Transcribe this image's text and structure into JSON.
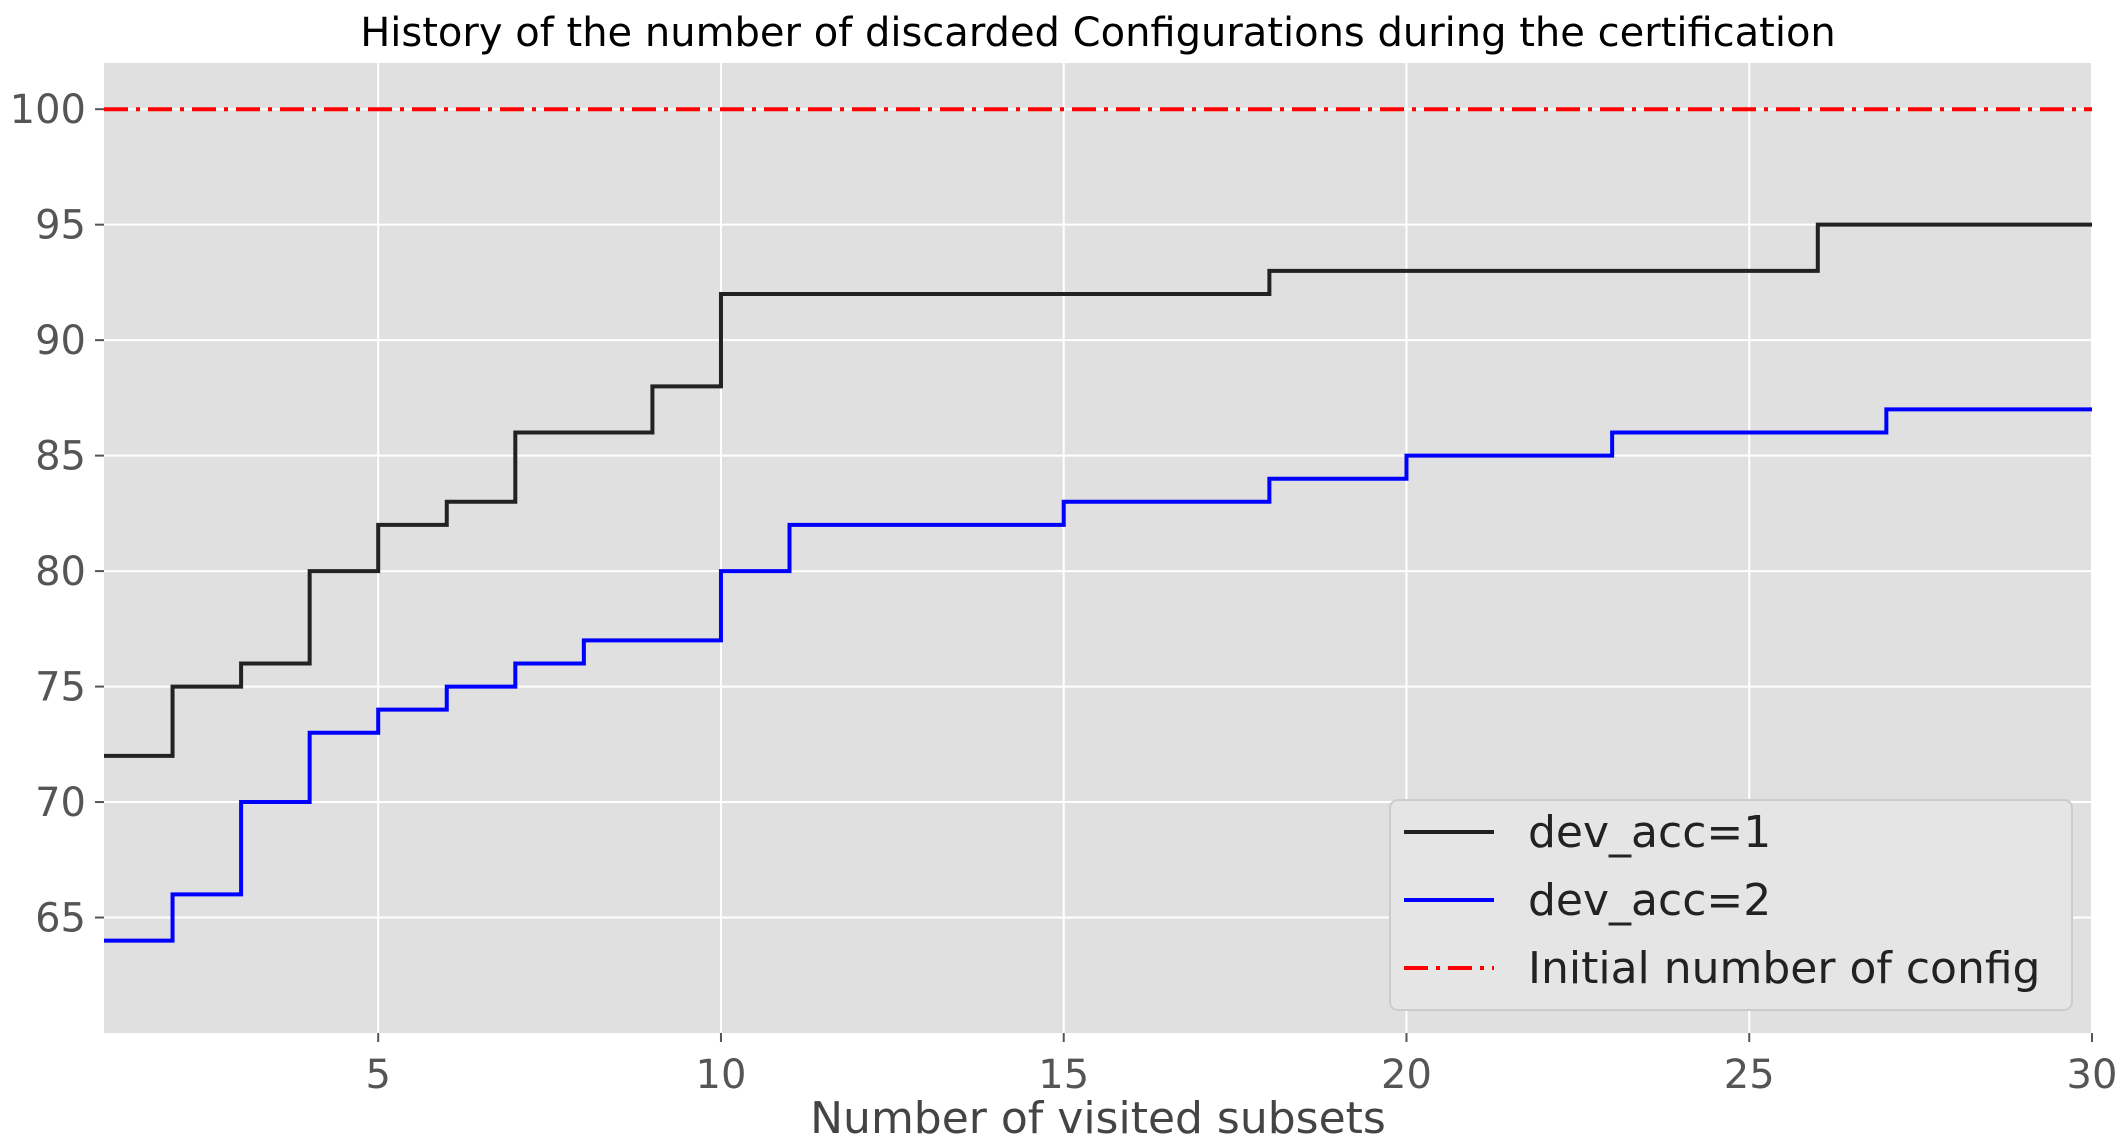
{
  "chart_data": {
    "type": "line",
    "step": "post",
    "title": "History of the number of discarded Configurations during the certification",
    "xlabel": "Number of visited subsets",
    "ylabel": "",
    "xlim": [
      1,
      30
    ],
    "ylim": [
      60,
      102
    ],
    "xticks": [
      5,
      10,
      15,
      20,
      25,
      30
    ],
    "yticks": [
      65,
      70,
      75,
      80,
      85,
      90,
      95,
      100
    ],
    "grid": true,
    "style": "ggplot",
    "background": "#e0e0e0",
    "legend": {
      "position": "lower-right"
    },
    "series": [
      {
        "name": "dev_acc=1",
        "color": "#222222",
        "dash": "solid",
        "x": [
          1,
          2,
          3,
          4,
          5,
          6,
          7,
          9,
          10,
          18,
          26,
          30
        ],
        "y": [
          72,
          75,
          76,
          80,
          82,
          83,
          86,
          88,
          92,
          93,
          95,
          95
        ]
      },
      {
        "name": "dev_acc=2",
        "color": "#0000ff",
        "dash": "solid",
        "x": [
          1,
          2,
          3,
          4,
          5,
          6,
          7,
          8,
          10,
          11,
          15,
          18,
          20,
          23,
          27,
          30
        ],
        "y": [
          64,
          66,
          70,
          73,
          74,
          75,
          76,
          77,
          80,
          82,
          83,
          84,
          85,
          86,
          87,
          87
        ]
      },
      {
        "name": "Initial number of config",
        "color": "#ff0000",
        "dash": "dashdot",
        "x": [
          1,
          30
        ],
        "y": [
          100,
          100
        ]
      }
    ]
  }
}
